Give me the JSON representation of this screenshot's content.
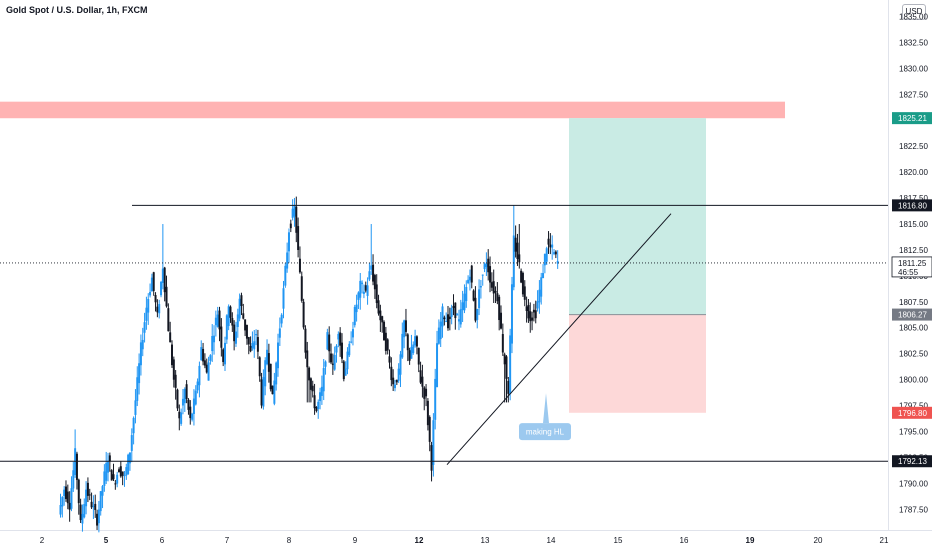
{
  "title": "Gold Spot / U.S. Dollar, 1h, FXCM",
  "currency_button": "USD",
  "colors": {
    "up": "#2196f3",
    "down": "#131722",
    "resistance_zone": "#ffb3b3",
    "profit_zone": "#c9ebe4",
    "loss_zone": "#fdd8d8",
    "axis_text": "#131722"
  },
  "chart_data": {
    "type": "candlestick",
    "symbol": "Gold Spot / U.S. Dollar",
    "timeframe": "1h",
    "ylim": [
      1785.5,
      1836.6
    ],
    "y_ticks": [
      "1787.50",
      "1790.00",
      "1792.50",
      "1795.00",
      "1797.50",
      "1800.00",
      "1802.50",
      "1805.00",
      "1807.50",
      "1810.00",
      "1812.50",
      "1815.00",
      "1817.50",
      "1820.00",
      "1822.50",
      "1825.00",
      "1827.50",
      "1830.00",
      "1832.50",
      "1835.00"
    ],
    "x_ticks": [
      "2",
      "5",
      "6",
      "7",
      "8",
      "9",
      "12",
      "13",
      "14",
      "15",
      "16",
      "19",
      "20",
      "21"
    ],
    "x_ticks_bold": [
      "5",
      "12",
      "19"
    ],
    "price_path": [
      1787.0,
      1789.5,
      1788.0,
      1792.8,
      1786.0,
      1789.5,
      1788.0,
      1786.5,
      1789.8,
      1792.5,
      1790.0,
      1791.5,
      1790.5,
      1793.2,
      1798.0,
      1803.0,
      1807.0,
      1809.8,
      1806.0,
      1811.0,
      1805.0,
      1800.0,
      1796.0,
      1799.0,
      1796.0,
      1798.5,
      1803.0,
      1800.5,
      1804.0,
      1806.5,
      1802.0,
      1807.5,
      1803.5,
      1807.8,
      1805.0,
      1802.5,
      1804.5,
      1798.0,
      1803.0,
      1798.0,
      1803.5,
      1808.5,
      1814.5,
      1816.6,
      1810.0,
      1803.0,
      1799.0,
      1797.0,
      1799.0,
      1804.0,
      1801.0,
      1805.0,
      1800.5,
      1803.0,
      1806.5,
      1809.0,
      1808.5,
      1811.0,
      1807.5,
      1805.0,
      1802.5,
      1799.5,
      1800.5,
      1805.5,
      1802.0,
      1804.0,
      1800.0,
      1798.0,
      1791.8,
      1803.5,
      1806.5,
      1805.5,
      1807.0,
      1805.5,
      1808.0,
      1810.5,
      1806.0,
      1809.5,
      1811.5,
      1809.0,
      1808.0,
      1803.0,
      1799.0,
      1813.5,
      1811.0,
      1807.5,
      1806.0,
      1806.5,
      1809.5,
      1813.0,
      1812.5,
      1811.3
    ],
    "annotations": [
      {
        "type": "resistance_zone",
        "from": 1825.2,
        "to": 1826.7
      },
      {
        "type": "horizontal_line",
        "price": 1816.8,
        "label": "1816.80"
      },
      {
        "type": "horizontal_line",
        "price": 1792.13,
        "label": "1792.13"
      },
      {
        "type": "trendline",
        "from_price": 1791.8,
        "to_price": 1816.0
      },
      {
        "type": "long_position",
        "entry": 1806.27,
        "target": 1825.21,
        "stop": 1796.8
      },
      {
        "type": "callout",
        "text": "making HL"
      }
    ],
    "price_labels": [
      {
        "value": "1825.21",
        "color": "#1a9c88"
      },
      {
        "value": "1816.80",
        "color": "#131722"
      },
      {
        "value": "1811.25",
        "sub": "46:55",
        "color": "#ffffff",
        "text_color": "#131722",
        "border": "#131722"
      },
      {
        "value": "1806.27",
        "color": "#757a84"
      },
      {
        "value": "1796.80",
        "color": "#ef5350"
      },
      {
        "value": "1792.13",
        "color": "#131722"
      }
    ],
    "last_price": 1811.25,
    "countdown": "46:55"
  }
}
